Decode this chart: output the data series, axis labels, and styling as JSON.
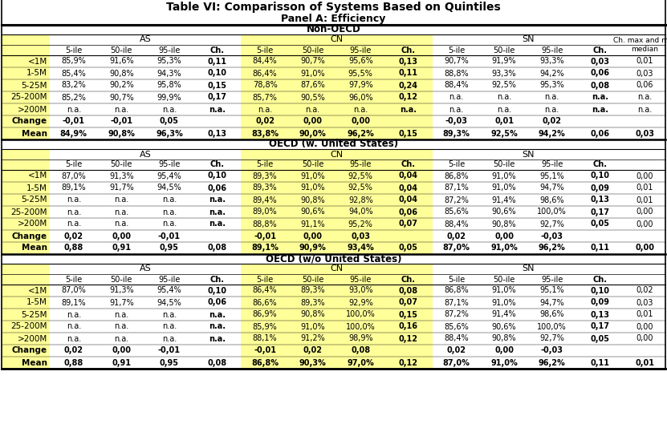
{
  "title": "Table VI: Comparisson of Systems Based on Quintiles",
  "subtitle": "Panel A: Efficiency",
  "yellow": "#FFFF99",
  "white": "#FFFFFF",
  "black": "#000000",
  "sections": [
    "Non-OECD",
    "OECD (w. United States)",
    "OECD (w/o United States)"
  ],
  "row_order": [
    "<1M",
    "1-5M",
    "5-25M",
    "25-200M",
    ">200M",
    "Change",
    "Mean"
  ],
  "bold_row_names": [
    "Change",
    "Mean"
  ],
  "data": {
    "Non-OECD": {
      "<1M": [
        "85,9%",
        "91,6%",
        "95,3%",
        "0,11",
        "84,4%",
        "90,7%",
        "95,6%",
        "0,13",
        "90,7%",
        "91,9%",
        "93,3%",
        "0,03",
        "0,01"
      ],
      "1-5M": [
        "85,4%",
        "90,8%",
        "94,3%",
        "0,10",
        "86,4%",
        "91,0%",
        "95,5%",
        "0,11",
        "88,8%",
        "93,3%",
        "94,2%",
        "0,06",
        "0,03"
      ],
      "5-25M": [
        "83,2%",
        "90,2%",
        "95,8%",
        "0,15",
        "78,8%",
        "87,6%",
        "97,9%",
        "0,24",
        "88,4%",
        "92,5%",
        "95,3%",
        "0,08",
        "0,06"
      ],
      "25-200M": [
        "85,2%",
        "90,7%",
        "99,9%",
        "0,17",
        "85,7%",
        "90,5%",
        "96,0%",
        "0,12",
        "n.a.",
        "n.a.",
        "n.a.",
        "n.a.",
        "n.a."
      ],
      ">200M": [
        "n.a.",
        "n.a.",
        "n.a.",
        "n.a.",
        "n.a.",
        "n.a.",
        "n.a.",
        "n.a.",
        "n.a.",
        "n.a.",
        "n.a.",
        "n.a.",
        "n.a."
      ],
      "Change": [
        "-0,01",
        "-0,01",
        "0,05",
        "",
        "0,02",
        "0,00",
        "0,00",
        "",
        "-0,03",
        "0,01",
        "0,02",
        "",
        ""
      ],
      "Mean": [
        "84,9%",
        "90,8%",
        "96,3%",
        "0,13",
        "83,8%",
        "90,0%",
        "96,2%",
        "0,15",
        "89,3%",
        "92,5%",
        "94,2%",
        "0,06",
        "0,03"
      ]
    },
    "OECD (w. United States)": {
      "<1M": [
        "87,0%",
        "91,3%",
        "95,4%",
        "0,10",
        "89,3%",
        "91,0%",
        "92,5%",
        "0,04",
        "86,8%",
        "91,0%",
        "95,1%",
        "0,10",
        "0,00"
      ],
      "1-5M": [
        "89,1%",
        "91,7%",
        "94,5%",
        "0,06",
        "89,3%",
        "91,0%",
        "92,5%",
        "0,04",
        "87,1%",
        "91,0%",
        "94,7%",
        "0,09",
        "0,01"
      ],
      "5-25M": [
        "n.a.",
        "n.a.",
        "n.a.",
        "n.a.",
        "89,4%",
        "90,8%",
        "92,8%",
        "0,04",
        "87,2%",
        "91,4%",
        "98,6%",
        "0,13",
        "0,01"
      ],
      "25-200M": [
        "n.a.",
        "n.a.",
        "n.a.",
        "n.a.",
        "89,0%",
        "90,6%",
        "94,0%",
        "0,06",
        "85,6%",
        "90,6%",
        "100,0%",
        "0,17",
        "0,00"
      ],
      ">200M": [
        "n.a.",
        "n.a.",
        "n.a.",
        "n.a.",
        "88,8%",
        "91,1%",
        "95,2%",
        "0,07",
        "88,4%",
        "90,8%",
        "92,7%",
        "0,05",
        "0,00"
      ],
      "Change": [
        "0,02",
        "0,00",
        "-0,01",
        "",
        "-0,01",
        "0,00",
        "0,03",
        "",
        "0,02",
        "0,00",
        "-0,03",
        "",
        ""
      ],
      "Mean": [
        "0,88",
        "0,91",
        "0,95",
        "0,08",
        "89,1%",
        "90,9%",
        "93,4%",
        "0,05",
        "87,0%",
        "91,0%",
        "96,2%",
        "0,11",
        "0,00"
      ]
    },
    "OECD (w/o United States)": {
      "<1M": [
        "87,0%",
        "91,3%",
        "95,4%",
        "0,10",
        "86,4%",
        "89,3%",
        "93,0%",
        "0,08",
        "86,8%",
        "91,0%",
        "95,1%",
        "0,10",
        "0,02"
      ],
      "1-5M": [
        "89,1%",
        "91,7%",
        "94,5%",
        "0,06",
        "86,6%",
        "89,3%",
        "92,9%",
        "0,07",
        "87,1%",
        "91,0%",
        "94,7%",
        "0,09",
        "0,03"
      ],
      "5-25M": [
        "n.a.",
        "n.a.",
        "n.a.",
        "n.a.",
        "86,9%",
        "90,8%",
        "100,0%",
        "0,15",
        "87,2%",
        "91,4%",
        "98,6%",
        "0,13",
        "0,01"
      ],
      "25-200M": [
        "n.a.",
        "n.a.",
        "n.a.",
        "n.a.",
        "85,9%",
        "91,0%",
        "100,0%",
        "0,16",
        "85,6%",
        "90,6%",
        "100,0%",
        "0,17",
        "0,00"
      ],
      ">200M": [
        "n.a.",
        "n.a.",
        "n.a.",
        "n.a.",
        "88,1%",
        "91,2%",
        "98,9%",
        "0,12",
        "88,4%",
        "90,8%",
        "92,7%",
        "0,05",
        "0,00"
      ],
      "Change": [
        "0,02",
        "0,00",
        "-0,01",
        "",
        "-0,01",
        "0,02",
        "0,08",
        "",
        "0,02",
        "0,00",
        "-0,03",
        "",
        ""
      ],
      "Mean": [
        "0,88",
        "0,91",
        "0,95",
        "0,08",
        "86,8%",
        "90,3%",
        "97,0%",
        "0,12",
        "87,0%",
        "91,0%",
        "96,2%",
        "0,11",
        "0,01"
      ]
    }
  }
}
